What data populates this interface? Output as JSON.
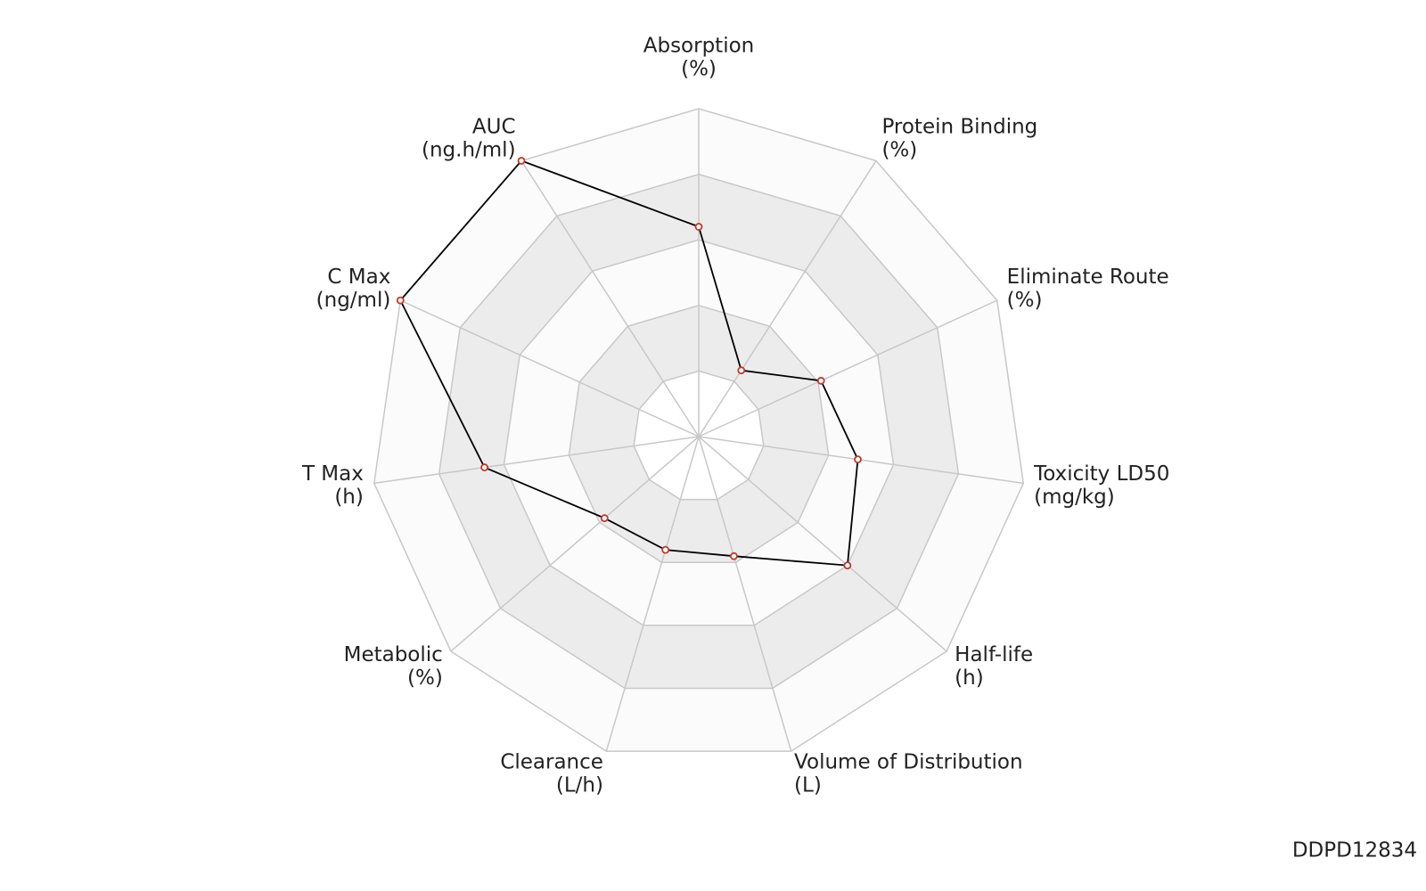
{
  "chart_data": {
    "type": "radar",
    "categories": [
      "Absorption",
      "Protein Binding",
      "Eliminate Route",
      "Toxicity LD50",
      "Half-life",
      "Volume of Distribution",
      "Clearance",
      "Metabolic",
      "T Max",
      "C Max",
      "AUC"
    ],
    "units": [
      "(%)",
      "(%)",
      "(%)",
      "(mg/kg)",
      "(h)",
      "(L)",
      "(L/h)",
      "(%)",
      "(h)",
      "(ng/ml)",
      "(ng.h/ml)"
    ],
    "values": [
      3.2,
      1.2,
      2.05,
      2.45,
      3.0,
      1.9,
      1.8,
      1.9,
      3.3,
      5,
      5
    ],
    "color": "#000000",
    "marker_color": "#c0392b",
    "rlim": [
      0,
      5
    ],
    "rticks": [
      1,
      2,
      3,
      4,
      5
    ],
    "grid": true
  },
  "footer": {
    "id": "DDPD12834"
  }
}
